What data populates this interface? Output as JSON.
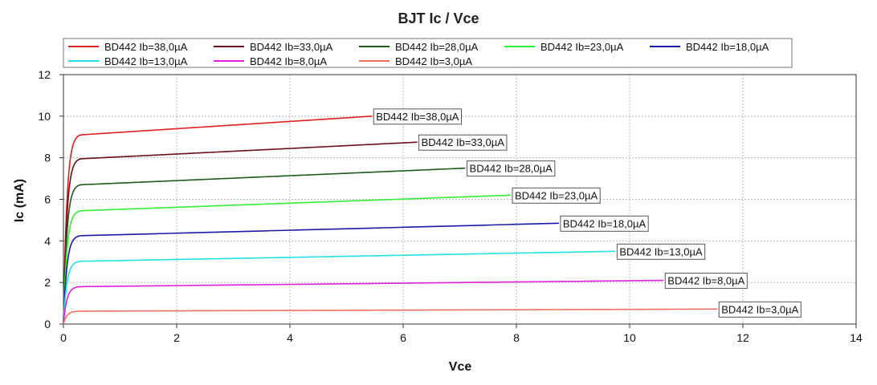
{
  "chart_data": {
    "type": "line",
    "title": "BJT Ic / Vce",
    "xlabel": "Vce",
    "ylabel": "Ic (mA)",
    "xlim": [
      0,
      14
    ],
    "ylim": [
      0,
      12
    ],
    "xticks": [
      0,
      2,
      4,
      6,
      8,
      10,
      12,
      14
    ],
    "yticks": [
      0,
      2,
      4,
      6,
      8,
      10,
      12
    ],
    "grid": true,
    "legend_position": "top",
    "series": [
      {
        "name": "BD442 Ib=38,0µA",
        "color": "#e02020",
        "x_end": 5.45,
        "sat": 9.1,
        "end": 10.0
      },
      {
        "name": "BD442 Ib=33,0µA",
        "color": "#6b0f1a",
        "x_end": 6.25,
        "sat": 7.95,
        "end": 8.75
      },
      {
        "name": "BD442 Ib=28,0µA",
        "color": "#1f5a1a",
        "x_end": 7.1,
        "sat": 6.7,
        "end": 7.5
      },
      {
        "name": "BD442 Ib=23,0µA",
        "color": "#33ee33",
        "x_end": 7.9,
        "sat": 5.45,
        "end": 6.2
      },
      {
        "name": "BD442 Ib=18,0µA",
        "color": "#1a1aa8",
        "x_end": 8.75,
        "sat": 4.25,
        "end": 4.85
      },
      {
        "name": "BD442 Ib=13,0µA",
        "color": "#22e0e8",
        "x_end": 9.75,
        "sat": 3.02,
        "end": 3.5
      },
      {
        "name": "BD442 Ib=8,0µA",
        "color": "#e020e0",
        "x_end": 10.6,
        "sat": 1.8,
        "end": 2.1
      },
      {
        "name": "BD442 Ib=3,0µA",
        "color": "#f07060",
        "x_end": 11.55,
        "sat": 0.62,
        "end": 0.72
      }
    ]
  }
}
